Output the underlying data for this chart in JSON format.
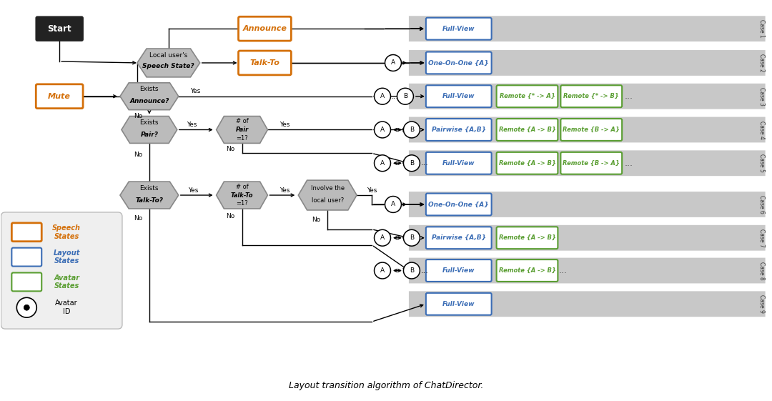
{
  "title": "Layout transition algorithm of ChatDirector.",
  "background_color": "#ffffff",
  "fig_width": 10.8,
  "fig_height": 5.61,
  "orange_color": "#D4700A",
  "blue_color": "#3B6DB5",
  "green_color": "#5A9E32",
  "light_gray": "#C8C8C8",
  "hex_gray": "#BBBBBB",
  "hex_edge": "#888888",
  "case_labels": [
    "Case 1",
    "Case 2",
    "Case 3",
    "Case 4",
    "Case 5",
    "Case 6",
    "Case 7",
    "Case 8",
    "Case 9"
  ]
}
